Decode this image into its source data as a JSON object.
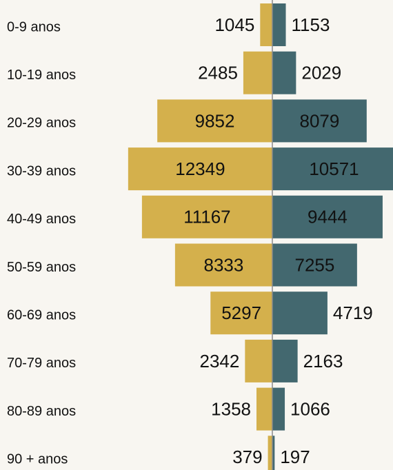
{
  "chart_data": {
    "type": "pyramid",
    "categories": [
      "0-9 anos",
      "10-19 anos",
      "20-29 anos",
      "30-39 anos",
      "40-49 anos",
      "50-59 anos",
      "60-69 anos",
      "70-79 anos",
      "80-89 anos",
      "90 + anos"
    ],
    "series": [
      {
        "color": "#d4b04c",
        "values": [
          1045,
          2485,
          9852,
          12349,
          11167,
          8333,
          5297,
          2342,
          1358,
          379
        ]
      },
      {
        "color": "#43686f",
        "values": [
          1153,
          2029,
          8079,
          10571,
          9444,
          7255,
          4719,
          2163,
          1066,
          197
        ]
      }
    ],
    "xlim": [
      0,
      12400
    ]
  }
}
